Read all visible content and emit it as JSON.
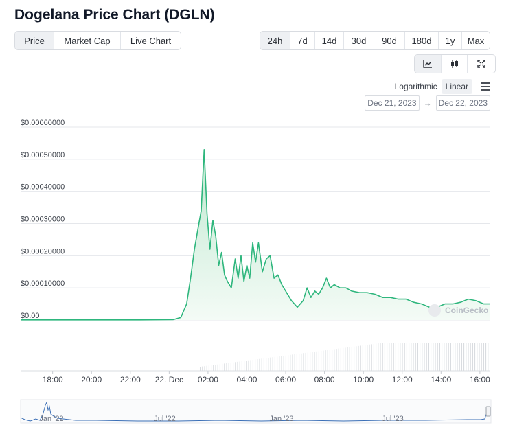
{
  "header": {
    "title": "Dogelana Price Chart (DGLN)"
  },
  "metric_tabs": [
    {
      "label": "Price",
      "active": true
    },
    {
      "label": "Market Cap",
      "active": false
    },
    {
      "label": "Live Chart",
      "active": false
    }
  ],
  "range_tabs": [
    {
      "label": "24h",
      "active": true
    },
    {
      "label": "7d",
      "active": false
    },
    {
      "label": "14d",
      "active": false
    },
    {
      "label": "30d",
      "active": false
    },
    {
      "label": "90d",
      "active": false
    },
    {
      "label": "180d",
      "active": false
    },
    {
      "label": "1y",
      "active": false
    },
    {
      "label": "Max",
      "active": false
    }
  ],
  "view_buttons": [
    {
      "icon": "line-chart-icon",
      "active": true
    },
    {
      "icon": "candlestick-icon",
      "active": false
    },
    {
      "icon": "fullscreen-icon",
      "active": false
    }
  ],
  "scale": {
    "log_label": "Logarithmic",
    "linear_label": "Linear",
    "selected": "Linear"
  },
  "date_range": {
    "from": "Dec 21, 2023",
    "to": "Dec 22, 2023"
  },
  "watermark": "CoinGecko",
  "colors": {
    "line": "#2eb67d",
    "fill": "#e6f5ec",
    "volume": "#d5d8dd",
    "navigator": "#3b6fb6",
    "grid": "#e5e7eb"
  },
  "chart_data": {
    "type": "area",
    "ylim": [
      0,
      0.0006
    ],
    "y_ticks": [
      "$0.00",
      "$0.00010000",
      "$0.00020000",
      "$0.00030000",
      "$0.00040000",
      "$0.00050000",
      "$0.00060000"
    ],
    "y_tick_values": [
      0,
      0.0001,
      0.0002,
      0.0003,
      0.0004,
      0.0005,
      0.0006
    ],
    "x_labels": [
      "18:00",
      "20:00",
      "22:00",
      "22. Dec",
      "02:00",
      "04:00",
      "06:00",
      "08:00",
      "10:00",
      "12:00",
      "14:00",
      "16:00"
    ],
    "x_label_hours": [
      18,
      20,
      22,
      24,
      26,
      28,
      30,
      32,
      34,
      36,
      38,
      40
    ],
    "x_range_hours": [
      16.35,
      40.5
    ],
    "series": [
      {
        "x_hours": [
          16.35,
          22.5,
          24.2,
          24.6,
          24.9,
          25.1,
          25.3,
          25.5,
          25.65,
          25.8,
          25.95,
          26.1,
          26.25,
          26.4,
          26.55,
          26.7,
          26.85,
          27.0,
          27.2,
          27.4,
          27.55,
          27.7,
          27.85,
          28.0,
          28.15,
          28.3,
          28.45,
          28.6,
          28.8,
          29.0,
          29.2,
          29.4,
          29.6,
          29.8,
          30.0,
          30.3,
          30.6,
          30.9,
          31.1,
          31.3,
          31.5,
          31.7,
          31.9,
          32.1,
          32.3,
          32.5,
          32.8,
          33.1,
          33.4,
          33.8,
          34.2,
          34.6,
          35.0,
          35.4,
          35.8,
          36.2,
          36.6,
          37.0,
          37.4,
          37.8,
          38.2,
          38.6,
          39.0,
          39.4,
          39.8,
          40.2,
          40.5
        ],
        "values": [
          5e-07,
          5e-07,
          1e-06,
          8e-06,
          5e-05,
          0.00013,
          0.00022,
          0.00029,
          0.00034,
          0.00053,
          0.00033,
          0.00022,
          0.00031,
          0.00026,
          0.00017,
          0.00021,
          0.00014,
          0.00012,
          0.0001,
          0.00019,
          0.00013,
          0.0002,
          0.00012,
          0.00017,
          0.00013,
          0.00024,
          0.00018,
          0.00024,
          0.00015,
          0.00019,
          0.0002,
          0.00013,
          0.00014,
          0.00011,
          9e-05,
          6e-05,
          4e-05,
          6e-05,
          0.0001,
          7e-05,
          9e-05,
          8e-05,
          0.0001,
          0.00013,
          0.0001,
          0.00011,
          0.0001,
          0.0001,
          9e-05,
          8.5e-05,
          8.5e-05,
          8e-05,
          7e-05,
          7e-05,
          6.5e-05,
          6.5e-05,
          5.5e-05,
          5e-05,
          4e-05,
          4e-05,
          5e-05,
          5e-05,
          5.5e-05,
          6.5e-05,
          6e-05,
          5e-05,
          5e-05
        ]
      }
    ],
    "navigator": {
      "labels": [
        "Jan '22",
        "Jul '22",
        "Jan '23",
        "Jul '23"
      ]
    }
  }
}
